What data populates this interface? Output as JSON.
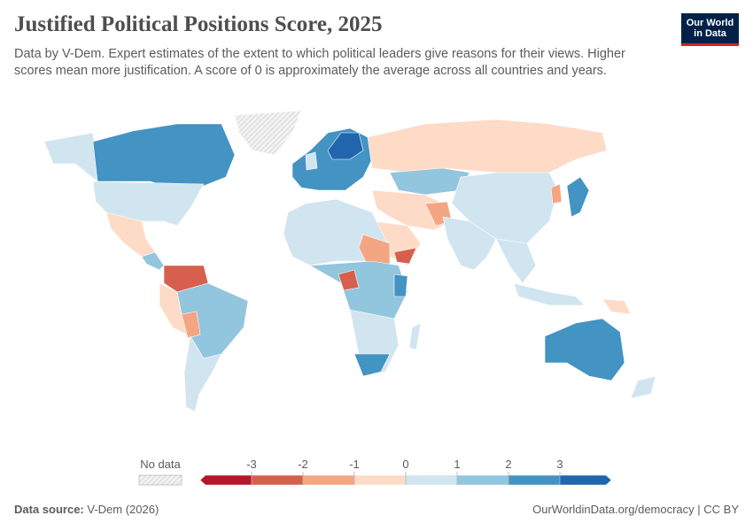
{
  "header": {
    "title": "Justified Political Positions Score, 2025",
    "subtitle": "Data by V-Dem. Expert estimates of the extent to which political leaders give reasons for their views. Higher scores mean more justification. A score of 0 is approximately the average across all countries and years.",
    "logo": [
      "Our World",
      "in Data"
    ]
  },
  "legend": {
    "no_data": "No data",
    "lim": [
      -4,
      4
    ],
    "ticks": [
      -3,
      -2,
      -1,
      0,
      1,
      2,
      3
    ],
    "colors": [
      "#b2182b",
      "#d6604d",
      "#f4a582",
      "#fddbc7",
      "#d1e5f0",
      "#92c5de",
      "#4393c3",
      "#2166ac"
    ]
  },
  "footer": {
    "source_label": "Data source:",
    "source": "V-Dem (2026)",
    "link": "OurWorldinData.org/democracy | CC BY"
  }
}
